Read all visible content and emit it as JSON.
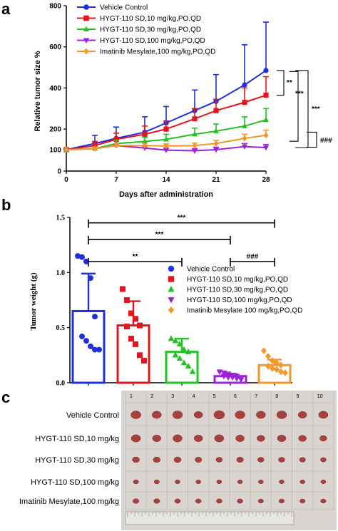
{
  "panels": {
    "a": {
      "letter": "a"
    },
    "b": {
      "letter": "b"
    },
    "c": {
      "letter": "c"
    }
  },
  "colors": {
    "vehicle": "#1f2fe0",
    "hygt10": "#e6141e",
    "hygt30": "#22c322",
    "hygt100": "#9b22d6",
    "imatinib": "#f5962a"
  },
  "chart_data": [
    {
      "type": "line",
      "xlabel": "Days after administration",
      "ylabel": "Relative tumor size %",
      "xlim": [
        0,
        28
      ],
      "ylim": [
        0,
        800
      ],
      "x_ticks": [
        "0",
        "7",
        "14",
        "21",
        "28"
      ],
      "y_ticks": [
        "0",
        "100",
        "200",
        "400",
        "600",
        "800"
      ],
      "x": [
        0,
        4,
        7,
        11,
        14,
        18,
        21,
        25,
        28
      ],
      "legend_position": "top-left",
      "series": [
        {
          "name": "Vehicle Control",
          "color_key": "vehicle",
          "marker": "circle",
          "values": [
            100,
            130,
            155,
            185,
            230,
            290,
            335,
            415,
            485
          ],
          "err": [
            0,
            40,
            55,
            75,
            80,
            100,
            130,
            195,
            235
          ]
        },
        {
          "name": "HYGT-110 SD,10 mg/kg,PO,QD",
          "color_key": "hygt10",
          "marker": "square",
          "values": [
            100,
            120,
            150,
            175,
            200,
            250,
            290,
            330,
            365
          ],
          "err": [
            0,
            20,
            30,
            40,
            40,
            50,
            55,
            70,
            90
          ]
        },
        {
          "name": "HYGT-110 SD,30 mg/kg,PO,QD",
          "color_key": "hygt30",
          "marker": "triangle",
          "values": [
            100,
            105,
            130,
            140,
            150,
            175,
            190,
            215,
            245
          ],
          "err": [
            0,
            10,
            15,
            20,
            25,
            30,
            35,
            45,
            55
          ]
        },
        {
          "name": "HYGT-110 SD,100 mg/kg,PO,QD",
          "color_key": "hygt100",
          "marker": "triangle-down",
          "values": [
            100,
            105,
            120,
            108,
            98,
            95,
            100,
            115,
            110
          ],
          "err": [
            0,
            10,
            10,
            10,
            10,
            10,
            12,
            15,
            15
          ]
        },
        {
          "name": "Imatinib Mesylate,100 mg/kg,PO,QD",
          "color_key": "imatinib",
          "marker": "diamond",
          "values": [
            100,
            105,
            120,
            120,
            118,
            120,
            130,
            155,
            170
          ],
          "err": [
            0,
            8,
            10,
            10,
            10,
            12,
            15,
            20,
            25
          ]
        }
      ],
      "annotations": [
        {
          "text": "**",
          "between": [
            "Vehicle Control",
            "HYGT-110 SD,10 mg/kg,PO,QD"
          ]
        },
        {
          "text": "***",
          "between": [
            "Vehicle Control",
            "HYGT-110 SD,30 mg/kg,PO,QD"
          ]
        },
        {
          "text": "***",
          "between": [
            "Vehicle Control",
            "HYGT-110 SD,100 mg/kg,PO,QD"
          ]
        },
        {
          "text": "###",
          "between": [
            "Imatinib Mesylate,100 mg/kg,PO,QD",
            "HYGT-110 SD,100 mg/kg,PO,QD"
          ]
        }
      ]
    },
    {
      "type": "bar",
      "ylabel": "Tumor weight (g)",
      "ylim": [
        0,
        1.5
      ],
      "y_ticks": [
        "0.0",
        "0.5",
        "1.0",
        "1.5"
      ],
      "legend_position": "right",
      "bars": [
        {
          "name": "Vehicle Control",
          "color_key": "vehicle",
          "marker": "circle",
          "mean": 0.65,
          "sd": 0.34,
          "points": [
            1.15,
            1.14,
            1.1,
            0.95,
            0.6,
            0.42,
            0.38,
            0.33,
            0.3,
            0.3
          ]
        },
        {
          "name": "HYGT-110 SD,10 mg/kg,PO,QD",
          "color_key": "hygt10",
          "marker": "square",
          "mean": 0.52,
          "sd": 0.22,
          "points": [
            0.85,
            0.75,
            0.63,
            0.58,
            0.52,
            0.51,
            0.4,
            0.35,
            0.25,
            0.2
          ]
        },
        {
          "name": "HYGT-110 SD,30 mg/kg,PO,QD",
          "color_key": "hygt30",
          "marker": "triangle",
          "mean": 0.28,
          "sd": 0.12,
          "points": [
            0.4,
            0.38,
            0.35,
            0.3,
            0.28,
            0.25,
            0.22,
            0.18,
            0.15,
            0.1
          ]
        },
        {
          "name": "HYGT-110 SD,100 mg/kg,PO,QD",
          "color_key": "hygt100",
          "marker": "triangle-down",
          "mean": 0.06,
          "sd": 0.02,
          "points": [
            0.1,
            0.09,
            0.08,
            0.07,
            0.06,
            0.06,
            0.05,
            0.05,
            0.04,
            0.03
          ]
        },
        {
          "name": "Imatinib Mesylate 100 mg/kg,PO,QD",
          "color_key": "imatinib",
          "marker": "diamond",
          "mean": 0.16,
          "sd": 0.05,
          "points": [
            0.29,
            0.24,
            0.2,
            0.18,
            0.16,
            0.15,
            0.13,
            0.12,
            0.1,
            0.09
          ]
        }
      ],
      "legend": [
        "Vehicle Control",
        "HYGT-110 SD,10 mg/kg,PO,QD",
        "HYGT-110 SD,30 mg/kg,PO,QD",
        "HYGT-110 SD,100 mg/kg,PO,QD",
        "Imatinib Mesylate 100 mg/kg,PO,QD"
      ],
      "annotations": [
        {
          "text": "***",
          "from": 0,
          "to": 4,
          "level": 1.45
        },
        {
          "text": "***",
          "from": 0,
          "to": 3,
          "level": 1.3
        },
        {
          "text": "**",
          "from": 0,
          "to": 2,
          "level": 1.1
        },
        {
          "text": "###",
          "from": 3,
          "to": 4,
          "level": 1.1
        }
      ]
    }
  ],
  "photo": {
    "column_numbers": [
      "1",
      "2",
      "3",
      "4",
      "5",
      "6",
      "7",
      "8",
      "9",
      "10"
    ],
    "row_labels": [
      "Vehicle Control",
      "HYGT-110 SD,10 mg/kg",
      "HYGT-110 SD,30 mg/kg",
      "HYGT-110 SD,100 mg/kg",
      "Imatinib Mesylate,100 mg/kg"
    ],
    "tumor_size_relative": [
      [
        1.0,
        0.9,
        1.0,
        0.8,
        1.1,
        1.0,
        0.9,
        1.0,
        0.8,
        0.9
      ],
      [
        0.9,
        0.8,
        0.9,
        0.8,
        0.9,
        0.8,
        0.7,
        0.8,
        0.7,
        0.6
      ],
      [
        0.6,
        0.6,
        0.6,
        0.55,
        0.5,
        0.55,
        0.5,
        0.5,
        0.45,
        0.4
      ],
      [
        0.35,
        0.35,
        0.3,
        0.3,
        0.3,
        0.3,
        0.3,
        0.3,
        0.3,
        0.3
      ],
      [
        0.45,
        0.45,
        0.4,
        0.4,
        0.4,
        0.4,
        0.35,
        0.35,
        0.35,
        0.35
      ]
    ]
  }
}
